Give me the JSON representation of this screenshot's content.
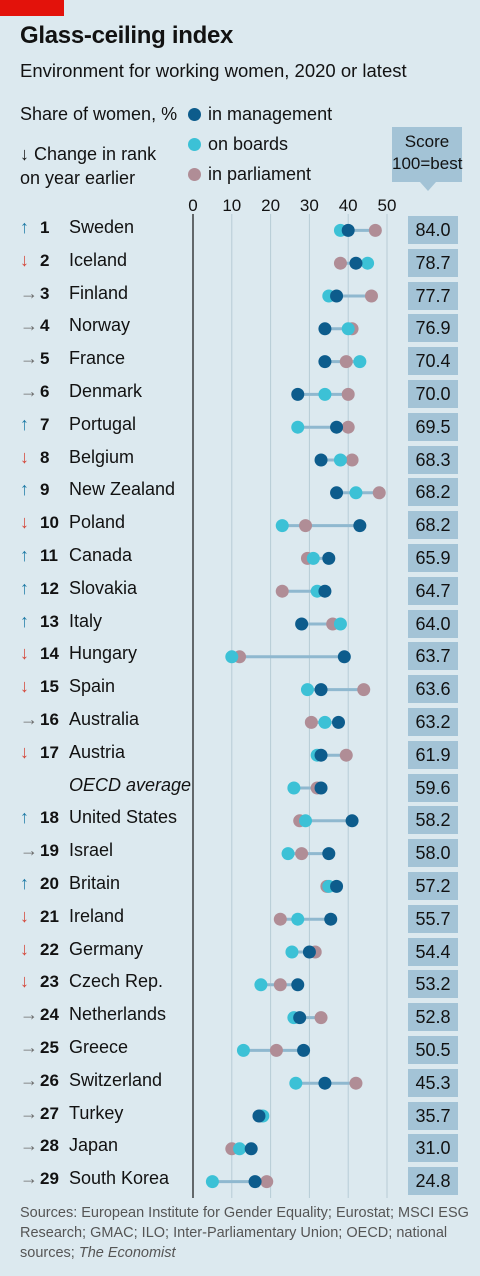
{
  "header": {
    "title": "Glass-ceiling index",
    "subtitle": "Environment for working women, 2020 or latest",
    "share_label": "Share of women, %",
    "change_label_1": "↓ Change in rank",
    "change_label_2": "on year earlier"
  },
  "legend": {
    "management": "in management",
    "boards": "on boards",
    "parliament": "in parliament"
  },
  "score_header": {
    "line1": "Score",
    "line2": "100=best"
  },
  "colors": {
    "management": "#0d5c8c",
    "boards": "#3cc1d6",
    "parliament": "#b08d96",
    "background": "#dce9ef",
    "score_box": "#a3c3d6",
    "up_arrow": "#1f7ba6",
    "down_arrow": "#d4473a",
    "flat_arrow": "#6b6b6b",
    "connector": "#8fb8cf"
  },
  "chart_data": {
    "type": "scatter",
    "title": "Glass-ceiling index",
    "subtitle": "Environment for working women, 2020 or latest",
    "xlabel": "Share of women, %",
    "xlim": [
      0,
      50
    ],
    "xticks": [
      "0",
      "10",
      "20",
      "30",
      "40",
      "50"
    ],
    "series_names": [
      "in management",
      "on boards",
      "in parliament"
    ],
    "rows": [
      {
        "rank": "1",
        "change": "up",
        "country": "Sweden",
        "management": 40,
        "boards": 38,
        "parliament": 47,
        "score": "84.0"
      },
      {
        "rank": "2",
        "change": "down",
        "country": "Iceland",
        "management": 42,
        "boards": 45,
        "parliament": 38,
        "score": "78.7"
      },
      {
        "rank": "3",
        "change": "flat",
        "country": "Finland",
        "management": 37,
        "boards": 35,
        "parliament": 46,
        "score": "77.7"
      },
      {
        "rank": "4",
        "change": "flat",
        "country": "Norway",
        "management": 34,
        "boards": 40,
        "parliament": 41,
        "score": "76.9"
      },
      {
        "rank": "5",
        "change": "flat",
        "country": "France",
        "management": 34,
        "boards": 43,
        "parliament": 39.5,
        "score": "70.4"
      },
      {
        "rank": "6",
        "change": "flat",
        "country": "Denmark",
        "management": 27,
        "boards": 34,
        "parliament": 40,
        "score": "70.0"
      },
      {
        "rank": "7",
        "change": "up",
        "country": "Portugal",
        "management": 37,
        "boards": 27,
        "parliament": 40,
        "score": "69.5"
      },
      {
        "rank": "8",
        "change": "down",
        "country": "Belgium",
        "management": 33,
        "boards": 38,
        "parliament": 41,
        "score": "68.3"
      },
      {
        "rank": "9",
        "change": "up",
        "country": "New Zealand",
        "management": 37,
        "boards": 42,
        "parliament": 48,
        "score": "68.2"
      },
      {
        "rank": "10",
        "change": "down",
        "country": "Poland",
        "management": 43,
        "boards": 23,
        "parliament": 29,
        "score": "68.2"
      },
      {
        "rank": "11",
        "change": "up",
        "country": "Canada",
        "management": 35,
        "boards": 31,
        "parliament": 29.5,
        "score": "65.9"
      },
      {
        "rank": "12",
        "change": "up",
        "country": "Slovakia",
        "management": 34,
        "boards": 32,
        "parliament": 23,
        "score": "64.7"
      },
      {
        "rank": "13",
        "change": "up",
        "country": "Italy",
        "management": 28,
        "boards": 38,
        "parliament": 36,
        "score": "64.0"
      },
      {
        "rank": "14",
        "change": "down",
        "country": "Hungary",
        "management": 39,
        "boards": 10,
        "parliament": 12,
        "score": "63.7"
      },
      {
        "rank": "15",
        "change": "down",
        "country": "Spain",
        "management": 33,
        "boards": 29.5,
        "parliament": 44,
        "score": "63.6"
      },
      {
        "rank": "16",
        "change": "flat",
        "country": "Australia",
        "management": 37.5,
        "boards": 34,
        "parliament": 30.5,
        "score": "63.2"
      },
      {
        "rank": "17",
        "change": "down",
        "country": "Austria",
        "management": 33,
        "boards": 32,
        "parliament": 39.5,
        "score": "61.9"
      },
      {
        "rank": "",
        "change": "none",
        "country": "OECD average",
        "management": 33,
        "boards": 26,
        "parliament": 32,
        "score": "59.6"
      },
      {
        "rank": "18",
        "change": "up",
        "country": "United States",
        "management": 41,
        "boards": 29,
        "parliament": 27.5,
        "score": "58.2"
      },
      {
        "rank": "19",
        "change": "flat",
        "country": "Israel",
        "management": 35,
        "boards": 24.5,
        "parliament": 28,
        "score": "58.0"
      },
      {
        "rank": "20",
        "change": "up",
        "country": "Britain",
        "management": 37,
        "boards": 35,
        "parliament": 34.5,
        "score": "57.2"
      },
      {
        "rank": "21",
        "change": "down",
        "country": "Ireland",
        "management": 35.5,
        "boards": 27,
        "parliament": 22.5,
        "score": "55.7"
      },
      {
        "rank": "22",
        "change": "down",
        "country": "Germany",
        "management": 30,
        "boards": 25.5,
        "parliament": 31.5,
        "score": "54.4"
      },
      {
        "rank": "23",
        "change": "down",
        "country": "Czech Rep.",
        "management": 27,
        "boards": 17.5,
        "parliament": 22.5,
        "score": "53.2"
      },
      {
        "rank": "24",
        "change": "flat",
        "country": "Netherlands",
        "management": 27.5,
        "boards": 26,
        "parliament": 33,
        "score": "52.8"
      },
      {
        "rank": "25",
        "change": "flat",
        "country": "Greece",
        "management": 28.5,
        "boards": 13,
        "parliament": 21.5,
        "score": "50.5"
      },
      {
        "rank": "26",
        "change": "flat",
        "country": "Switzerland",
        "management": 34,
        "boards": 26.5,
        "parliament": 42,
        "score": "45.3"
      },
      {
        "rank": "27",
        "change": "flat",
        "country": "Turkey",
        "management": 17,
        "boards": 18,
        "parliament": 17.5,
        "score": "35.7"
      },
      {
        "rank": "28",
        "change": "flat",
        "country": "Japan",
        "management": 15,
        "boards": 12,
        "parliament": 10,
        "score": "31.0"
      },
      {
        "rank": "29",
        "change": "flat",
        "country": "South Korea",
        "management": 16,
        "boards": 5,
        "parliament": 19,
        "score": "24.8"
      }
    ]
  },
  "sources": {
    "text": "Sources: European Institute for Gender Equality; Eurostat; MSCI ESG Research; GMAC; ILO; Inter-Parliamentary Union; OECD; national sources; ",
    "italic": "The Economist"
  }
}
